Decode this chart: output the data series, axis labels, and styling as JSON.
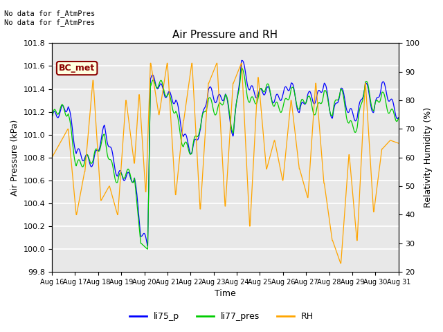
{
  "title": "Air Pressure and RH",
  "xlabel": "Time",
  "ylabel_left": "Air Pressure (kPa)",
  "ylabel_right": "Relativity Humidity (%)",
  "annotation_text": "No data for f_AtmPres\nNo data for f_AtmPres",
  "bc_met_label": "BC_met",
  "ylim_left": [
    99.8,
    101.8
  ],
  "ylim_right": [
    20,
    100
  ],
  "yticks_left": [
    99.8,
    100.0,
    100.2,
    100.4,
    100.6,
    100.8,
    101.0,
    101.2,
    101.4,
    101.6,
    101.8
  ],
  "yticks_right": [
    20,
    30,
    40,
    50,
    60,
    70,
    80,
    90,
    100
  ],
  "color_li75": "#0000ff",
  "color_li77": "#00cc00",
  "color_rh": "#ffa500",
  "legend_labels": [
    "li75_p",
    "li77_pres",
    "RH"
  ],
  "background_color": "#e8e8e8",
  "grid_color": "#ffffff",
  "tick_labels": [
    "Aug 16",
    "Aug 17",
    "Aug 18",
    "Aug 19",
    "Aug 20",
    "Aug 21",
    "Aug 22",
    "Aug 23",
    "Aug 24",
    "Aug 25",
    "Aug 26",
    "Aug 27",
    "Aug 28",
    "Aug 29",
    "Aug 30",
    "Aug 31"
  ]
}
